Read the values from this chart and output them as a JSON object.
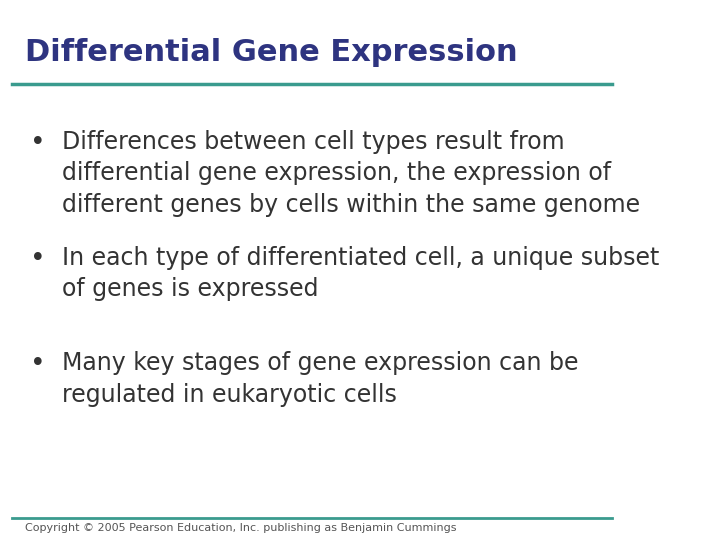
{
  "title": "Differential Gene Expression",
  "title_color": "#2E3480",
  "title_fontsize": 22,
  "line_color": "#3A9B8E",
  "background_color": "#FFFFFF",
  "bullet_points": [
    "Differences between cell types result from\ndifferential gene expression, the expression of\ndifferent genes by cells within the same genome",
    "In each type of differentiated cell, a unique subset\nof genes is expressed",
    "Many key stages of gene expression can be\nregulated in eukaryotic cells"
  ],
  "bullet_color": "#333333",
  "bullet_fontsize": 17,
  "copyright": "Copyright © 2005 Pearson Education, Inc. publishing as Benjamin Cummings",
  "copyright_fontsize": 8,
  "copyright_color": "#555555"
}
